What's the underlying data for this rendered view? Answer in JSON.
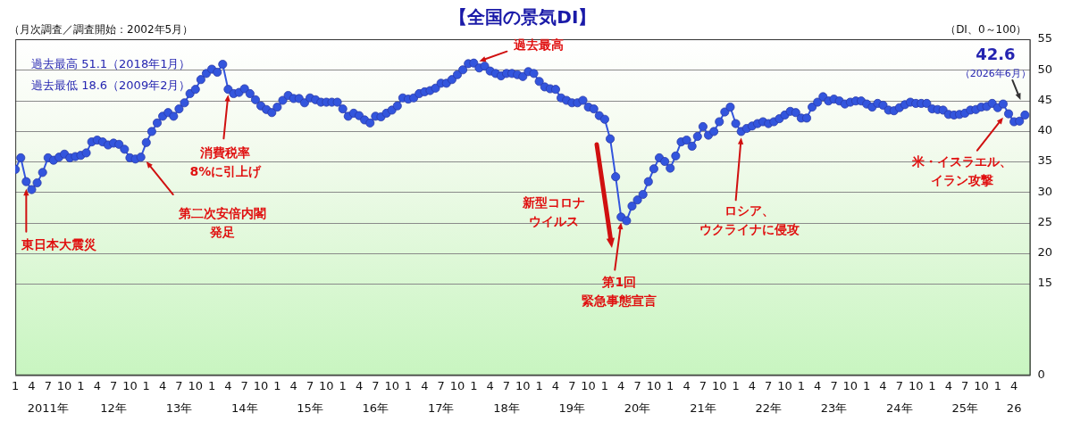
{
  "chart_data": {
    "type": "line",
    "title": "【全国の景気DI】",
    "subtitle": "（月次調査／調査開始：2002年5月）",
    "ylabel": "（DI、0～100）",
    "x": [
      "2011-01",
      "2011-02",
      "2011-03",
      "2011-04",
      "2011-05",
      "2011-06",
      "2011-07",
      "2011-08",
      "2011-09",
      "2011-10",
      "2011-11",
      "2011-12",
      "2012-01",
      "2012-02",
      "2012-03",
      "2012-04",
      "2012-05",
      "2012-06",
      "2012-07",
      "2012-08",
      "2012-09",
      "2012-10",
      "2012-11",
      "2012-12",
      "2013-01",
      "2013-02",
      "2013-03",
      "2013-04",
      "2013-05",
      "2013-06",
      "2013-07",
      "2013-08",
      "2013-09",
      "2013-10",
      "2013-11",
      "2013-12",
      "2014-01",
      "2014-02",
      "2014-03",
      "2014-04",
      "2014-05",
      "2014-06",
      "2014-07",
      "2014-08",
      "2014-09",
      "2014-10",
      "2014-11",
      "2014-12",
      "2015-01",
      "2015-02",
      "2015-03",
      "2015-04",
      "2015-05",
      "2015-06",
      "2015-07",
      "2015-08",
      "2015-09",
      "2015-10",
      "2015-11",
      "2015-12",
      "2016-01",
      "2016-02",
      "2016-03",
      "2016-04",
      "2016-05",
      "2016-06",
      "2016-07",
      "2016-08",
      "2016-09",
      "2016-10",
      "2016-11",
      "2016-12",
      "2017-01",
      "2017-02",
      "2017-03",
      "2017-04",
      "2017-05",
      "2017-06",
      "2017-07",
      "2017-08",
      "2017-09",
      "2017-10",
      "2017-11",
      "2017-12",
      "2018-01",
      "2018-02",
      "2018-03",
      "2018-04",
      "2018-05",
      "2018-06",
      "2018-07",
      "2018-08",
      "2018-09",
      "2018-10",
      "2018-11",
      "2018-12",
      "2019-01",
      "2019-02",
      "2019-03",
      "2019-04",
      "2019-05",
      "2019-06",
      "2019-07",
      "2019-08",
      "2019-09",
      "2019-10",
      "2019-11",
      "2019-12",
      "2020-01",
      "2020-02",
      "2020-03",
      "2020-04",
      "2020-05",
      "2020-06",
      "2020-07",
      "2020-08",
      "2020-09",
      "2020-10",
      "2020-11",
      "2020-12",
      "2021-01",
      "2021-02",
      "2021-03",
      "2021-04",
      "2021-05",
      "2021-06",
      "2021-07",
      "2021-08",
      "2021-09",
      "2021-10",
      "2021-11",
      "2021-12",
      "2022-01",
      "2022-02",
      "2022-03",
      "2022-04",
      "2022-05",
      "2022-06",
      "2022-07",
      "2022-08",
      "2022-09",
      "2022-10",
      "2022-11",
      "2022-12",
      "2023-01",
      "2023-02",
      "2023-03",
      "2023-04",
      "2023-05",
      "2023-06",
      "2023-07",
      "2023-08",
      "2023-09",
      "2023-10",
      "2023-11",
      "2023-12",
      "2024-01",
      "2024-02",
      "2024-03",
      "2024-04",
      "2024-05",
      "2024-06",
      "2024-07",
      "2024-08",
      "2024-09",
      "2024-10",
      "2024-11",
      "2024-12",
      "2025-01",
      "2025-02",
      "2025-03",
      "2025-04",
      "2025-05",
      "2025-06",
      "2025-07",
      "2025-08",
      "2025-09",
      "2025-10",
      "2025-11",
      "2025-12",
      "2026-01",
      "2026-02",
      "2026-03",
      "2026-04",
      "2026-05",
      "2026-06"
    ],
    "series": [
      {
        "color": "#3355dd",
        "values": [
          33.7,
          35.6,
          31.7,
          30.4,
          31.5,
          33.2,
          35.6,
          35.2,
          35.7,
          36.2,
          35.6,
          35.8,
          36.0,
          36.4,
          38.2,
          38.5,
          38.2,
          37.7,
          38.0,
          37.8,
          37.0,
          35.6,
          35.4,
          35.7,
          38.1,
          39.9,
          41.3,
          42.4,
          43.0,
          42.4,
          43.6,
          44.6,
          46.1,
          46.8,
          48.4,
          49.4,
          50.1,
          49.6,
          50.9,
          46.8,
          46.1,
          46.3,
          46.9,
          46.1,
          45.1,
          44.1,
          43.5,
          43.0,
          43.9,
          45.0,
          45.8,
          45.3,
          45.3,
          44.6,
          45.4,
          45.1,
          44.7,
          44.7,
          44.7,
          44.7,
          43.6,
          42.4,
          42.9,
          42.5,
          41.8,
          41.3,
          42.4,
          42.3,
          42.9,
          43.4,
          44.1,
          45.4,
          45.2,
          45.4,
          46.1,
          46.4,
          46.6,
          47.0,
          47.8,
          47.8,
          48.4,
          49.2,
          50.0,
          51.0,
          51.1,
          50.3,
          50.6,
          49.8,
          49.4,
          49.0,
          49.4,
          49.4,
          49.2,
          48.9,
          49.7,
          49.4,
          48.1,
          47.2,
          46.9,
          46.8,
          45.4,
          45.0,
          44.6,
          44.6,
          45.0,
          43.9,
          43.6,
          42.5,
          41.9,
          38.7,
          32.5,
          25.9,
          25.3,
          27.7,
          28.7,
          29.6,
          31.7,
          33.8,
          35.6,
          35.0,
          33.9,
          35.9,
          38.2,
          38.5,
          37.5,
          39.1,
          40.7,
          39.3,
          39.9,
          41.5,
          43.1,
          43.9,
          41.2,
          39.9,
          40.4,
          40.8,
          41.2,
          41.5,
          41.2,
          41.5,
          42.0,
          42.6,
          43.2,
          43.0,
          42.1,
          42.1,
          43.9,
          44.7,
          45.6,
          44.9,
          45.2,
          44.9,
          44.4,
          44.7,
          44.9,
          44.9,
          44.4,
          43.9,
          44.5,
          44.2,
          43.4,
          43.3,
          43.8,
          44.3,
          44.7,
          44.5,
          44.5,
          44.5,
          43.6,
          43.5,
          43.4,
          42.7,
          42.6,
          42.7,
          42.9,
          43.4,
          43.5,
          43.9,
          44.0,
          44.5,
          43.8,
          44.4,
          42.8,
          41.5,
          41.6,
          42.6
        ]
      }
    ],
    "xlim": [
      "2011-01",
      "2026-07"
    ],
    "xticks": [
      {
        "value": "2011-01",
        "label": "1"
      },
      {
        "value": "2011-04",
        "label": "4"
      },
      {
        "value": "2011-07",
        "label": "7"
      },
      {
        "value": "2011-10",
        "label": "10"
      },
      {
        "value": "2012-01",
        "label": "1"
      },
      {
        "value": "2012-04",
        "label": "4"
      },
      {
        "value": "2012-07",
        "label": "7"
      },
      {
        "value": "2012-10",
        "label": "10"
      },
      {
        "value": "2013-01",
        "label": "1"
      },
      {
        "value": "2013-04",
        "label": "4"
      },
      {
        "value": "2013-07",
        "label": "7"
      },
      {
        "value": "2013-10",
        "label": "10"
      },
      {
        "value": "2014-01",
        "label": "1"
      },
      {
        "value": "2014-04",
        "label": "4"
      },
      {
        "value": "2014-07",
        "label": "7"
      },
      {
        "value": "2014-10",
        "label": "10"
      },
      {
        "value": "2015-01",
        "label": "1"
      },
      {
        "value": "2015-04",
        "label": "4"
      },
      {
        "value": "2015-07",
        "label": "7"
      },
      {
        "value": "2015-10",
        "label": "10"
      },
      {
        "value": "2016-01",
        "label": "1"
      },
      {
        "value": "2016-04",
        "label": "4"
      },
      {
        "value": "2016-07",
        "label": "7"
      },
      {
        "value": "2016-10",
        "label": "10"
      },
      {
        "value": "2017-01",
        "label": "1"
      },
      {
        "value": "2017-04",
        "label": "4"
      },
      {
        "value": "2017-07",
        "label": "7"
      },
      {
        "value": "2017-10",
        "label": "10"
      },
      {
        "value": "2018-01",
        "label": "1"
      },
      {
        "value": "2018-04",
        "label": "4"
      },
      {
        "value": "2018-07",
        "label": "7"
      },
      {
        "value": "2018-10",
        "label": "10"
      },
      {
        "value": "2019-01",
        "label": "1"
      },
      {
        "value": "2019-04",
        "label": "4"
      },
      {
        "value": "2019-07",
        "label": "7"
      },
      {
        "value": "2019-10",
        "label": "10"
      },
      {
        "value": "2020-01",
        "label": "1"
      },
      {
        "value": "2020-04",
        "label": "4"
      },
      {
        "value": "2020-07",
        "label": "7"
      },
      {
        "value": "2020-10",
        "label": "10"
      },
      {
        "value": "2021-01",
        "label": "1"
      },
      {
        "value": "2021-04",
        "label": "4"
      },
      {
        "value": "2021-07",
        "label": "7"
      },
      {
        "value": "2021-10",
        "label": "10"
      },
      {
        "value": "2022-01",
        "label": "1"
      },
      {
        "value": "2022-04",
        "label": "4"
      },
      {
        "value": "2022-07",
        "label": "7"
      },
      {
        "value": "2022-10",
        "label": "10"
      },
      {
        "value": "2023-01",
        "label": "1"
      },
      {
        "value": "2023-04",
        "label": "4"
      },
      {
        "value": "2023-07",
        "label": "7"
      },
      {
        "value": "2023-10",
        "label": "10"
      },
      {
        "value": "2024-01",
        "label": "1"
      },
      {
        "value": "2024-04",
        "label": "4"
      },
      {
        "value": "2024-07",
        "label": "7"
      },
      {
        "value": "2024-10",
        "label": "10"
      },
      {
        "value": "2025-01",
        "label": "1"
      },
      {
        "value": "2025-04",
        "label": "4"
      },
      {
        "value": "2025-07",
        "label": "7"
      },
      {
        "value": "2025-10",
        "label": "10"
      },
      {
        "value": "2026-01",
        "label": "1"
      },
      {
        "value": "2026-04",
        "label": "4"
      }
    ],
    "x2lim": [
      "2011-01",
      "2026-07"
    ],
    "x2ticks": [
      {
        "value": "2011-07",
        "label": "2011年"
      },
      {
        "value": "2012-07",
        "label": "12年"
      },
      {
        "value": "2013-07",
        "label": "13年"
      },
      {
        "value": "2014-07",
        "label": "14年"
      },
      {
        "value": "2015-07",
        "label": "15年"
      },
      {
        "value": "2016-07",
        "label": "16年"
      },
      {
        "value": "2017-07",
        "label": "17年"
      },
      {
        "value": "2018-07",
        "label": "18年"
      },
      {
        "value": "2019-07",
        "label": "19年"
      },
      {
        "value": "2020-07",
        "label": "20年"
      },
      {
        "value": "2021-07",
        "label": "21年"
      },
      {
        "value": "2022-07",
        "label": "22年"
      },
      {
        "value": "2023-07",
        "label": "23年"
      },
      {
        "value": "2024-07",
        "label": "24年"
      },
      {
        "value": "2025-07",
        "label": "25年"
      },
      {
        "value": "2026-04",
        "label": "26"
      }
    ],
    "ylim": [
      0,
      55
    ],
    "yticks": [
      0,
      15,
      20,
      25,
      30,
      35,
      40,
      45,
      50,
      55
    ],
    "grid": "y",
    "legend": false,
    "marker": "circle",
    "line_style": "solid",
    "annotations": [
      "過去最高 51.1（2018年1月）",
      "過去最低 18.6（2009年2月）",
      {
        "text": "東日本大震災",
        "x": "2011-03",
        "y": 30.5
      },
      {
        "text": "第二次安倍内閣発足",
        "x": "2013-01",
        "y": 35.0
      },
      {
        "text": "消費税率8%に引上げ",
        "x": "2014-04",
        "y": 45.9
      },
      {
        "text": "過去最高",
        "x": "2018-02",
        "y": 51.4
      },
      "新型コロナウイルス",
      {
        "text": "第1回緊急事態宣言",
        "x": "2020-04",
        "y": 25.0
      },
      {
        "text": "ロシア、ウクライナに侵攻",
        "x": "2022-02",
        "y": 38.9
      },
      {
        "text": "米・イスラエル、イラン攻撃",
        "x": "2026-02",
        "y": 42.2
      },
      {
        "text": "42.6\n（2026年6月）",
        "x": "2026-06",
        "y": 42.6
      }
    ]
  }
}
